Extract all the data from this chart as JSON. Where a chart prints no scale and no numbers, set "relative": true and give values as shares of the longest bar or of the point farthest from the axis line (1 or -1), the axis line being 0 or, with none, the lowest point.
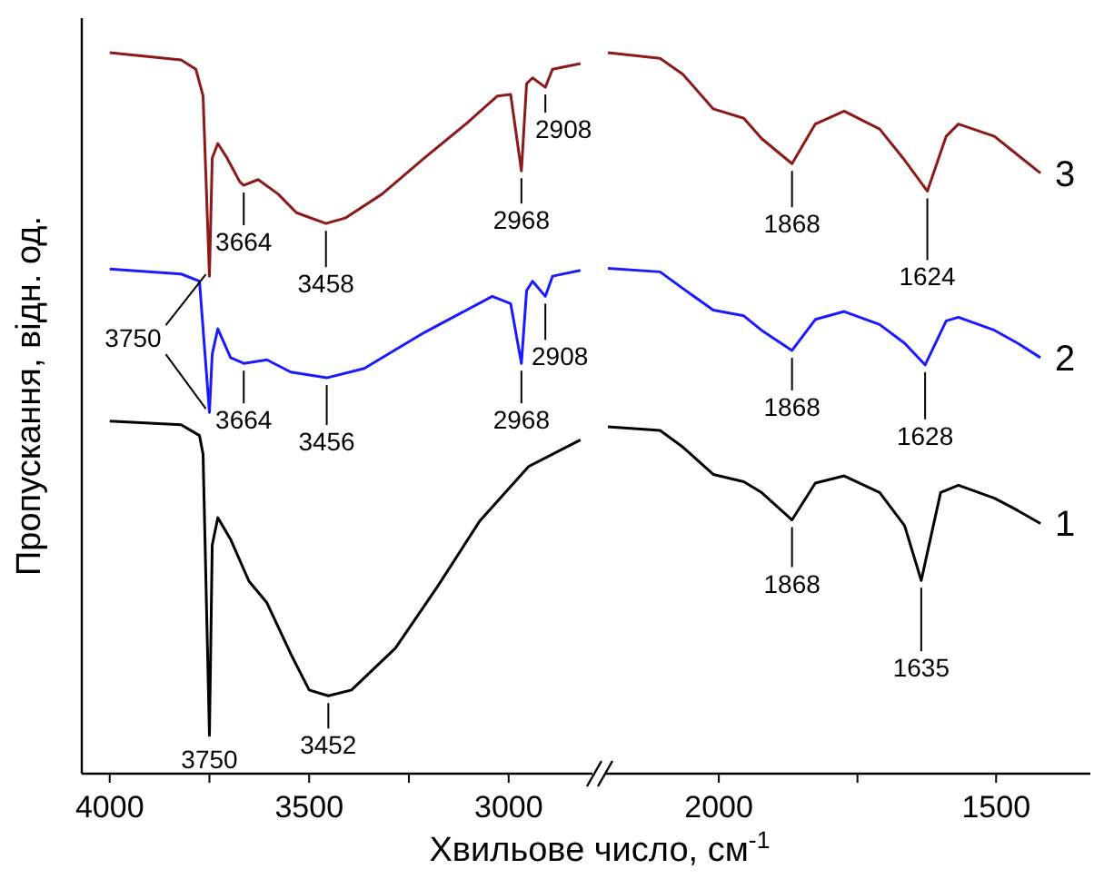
{
  "chart_data": [
    {
      "type": "line",
      "relative": true,
      "xlabel": "Хвильове число, см$^{-1}$",
      "ylabel": "Пропускання, відн. од.",
      "xlim": [
        4070,
        2790
      ],
      "xticks": [
        4000,
        {
          "value": 3750,
          "label": null
        },
        3500,
        {
          "value": 3250,
          "label": null
        },
        3000
      ],
      "series": [
        {
          "color": "#000000",
          "x": [
            4000,
            3821,
            3775,
            3766,
            3750,
            3743,
            3729,
            3697,
            3651,
            3606,
            3546,
            3500,
            3452,
            3394,
            3284,
            3179,
            3073,
            2950,
            2820
          ],
          "values": [
            0.489,
            0.484,
            0.469,
            0.443,
            0.053,
            0.317,
            0.355,
            0.325,
            0.267,
            0.237,
            0.166,
            0.116,
            0.108,
            0.116,
            0.174,
            0.259,
            0.35,
            0.426,
            0.463
          ]
        },
        {
          "color": "#1a1aff",
          "x": [
            4000,
            3821,
            3775,
            3750,
            3743,
            3729,
            3697,
            3664,
            3606,
            3546,
            3456,
            3362,
            3211,
            3041,
            2995,
            2968,
            2955,
            2940,
            2908,
            2890,
            2820
          ],
          "values": [
            0.7,
            0.693,
            0.683,
            0.501,
            0.582,
            0.617,
            0.577,
            0.569,
            0.574,
            0.557,
            0.549,
            0.562,
            0.612,
            0.662,
            0.652,
            0.569,
            0.67,
            0.683,
            0.662,
            0.69,
            0.698
          ]
        },
        {
          "color": "#8b1a1a",
          "x": [
            4000,
            3821,
            3784,
            3766,
            3750,
            3743,
            3729,
            3706,
            3674,
            3664,
            3628,
            3578,
            3532,
            3458,
            3408,
            3317,
            3211,
            3101,
            3028,
            2995,
            2968,
            2955,
            2940,
            2908,
            2890,
            2820
          ],
          "values": [
            1.0,
            0.99,
            0.977,
            0.94,
            0.69,
            0.854,
            0.874,
            0.854,
            0.821,
            0.816,
            0.824,
            0.804,
            0.778,
            0.763,
            0.771,
            0.804,
            0.854,
            0.904,
            0.94,
            0.942,
            0.836,
            0.957,
            0.965,
            0.952,
            0.977,
            0.985
          ]
        }
      ],
      "annotations": [
        {
          "text": "3664",
          "x": 3664,
          "y": 0.816
        },
        {
          "text": "3458",
          "x": 3458,
          "y": 0.763
        },
        {
          "text": "2968",
          "x": 2968,
          "y": 0.836
        },
        {
          "text": "2908",
          "x": 2908,
          "y": 0.952
        },
        {
          "text": "3750",
          "x": 3750,
          "y": 0.501
        },
        {
          "text": "3664",
          "x": 3664,
          "y": 0.569
        },
        {
          "text": "3456",
          "x": 3456,
          "y": 0.549
        },
        {
          "text": "2968",
          "x": 2968,
          "y": 0.569
        },
        {
          "text": "2908",
          "x": 2908,
          "y": 0.662
        },
        {
          "text": "3750",
          "x": 3750,
          "y": 0.053
        },
        {
          "text": "3452",
          "x": 3452,
          "y": 0.108
        }
      ]
    },
    {
      "type": "line",
      "relative": true,
      "xlim": [
        2205,
        1330
      ],
      "xticks": [
        2000,
        {
          "value": 1750,
          "label": null
        },
        1500
      ],
      "series": [
        {
          "name": "1",
          "color": "#000000",
          "x": [
            2200,
            2106,
            2065,
            2010,
            1955,
            1923,
            1868,
            1826,
            1774,
            1710,
            1665,
            1635,
            1600,
            1568,
            1503,
            1461,
            1420
          ],
          "values": [
            0.481,
            0.476,
            0.453,
            0.415,
            0.405,
            0.39,
            0.352,
            0.403,
            0.413,
            0.39,
            0.344,
            0.268,
            0.39,
            0.4,
            0.382,
            0.365,
            0.347
          ]
        },
        {
          "name": "2",
          "color": "#1a1aff",
          "x": [
            2200,
            2106,
            2065,
            2010,
            1955,
            1923,
            1868,
            1826,
            1774,
            1710,
            1665,
            1628,
            1590,
            1568,
            1503,
            1461,
            1420
          ],
          "values": [
            0.701,
            0.696,
            0.673,
            0.643,
            0.635,
            0.615,
            0.587,
            0.63,
            0.641,
            0.623,
            0.597,
            0.567,
            0.628,
            0.633,
            0.615,
            0.597,
            0.577
          ]
        },
        {
          "name": "3",
          "color": "#8b1a1a",
          "x": [
            2200,
            2106,
            2065,
            2010,
            1955,
            1923,
            1868,
            1826,
            1774,
            1710,
            1665,
            1624,
            1590,
            1568,
            1503,
            1461,
            1420
          ],
          "values": [
            1.0,
            0.992,
            0.97,
            0.922,
            0.909,
            0.881,
            0.846,
            0.901,
            0.919,
            0.894,
            0.851,
            0.808,
            0.884,
            0.901,
            0.884,
            0.858,
            0.833
          ]
        }
      ],
      "annotations": [
        {
          "text": "1868",
          "x": 1868,
          "y": 0.846
        },
        {
          "text": "1624",
          "x": 1624,
          "y": 0.808
        },
        {
          "text": "1868",
          "x": 1868,
          "y": 0.587
        },
        {
          "text": "1628",
          "x": 1628,
          "y": 0.567
        },
        {
          "text": "1868",
          "x": 1868,
          "y": 0.352
        },
        {
          "text": "1635",
          "x": 1635,
          "y": 0.268
        }
      ]
    }
  ]
}
